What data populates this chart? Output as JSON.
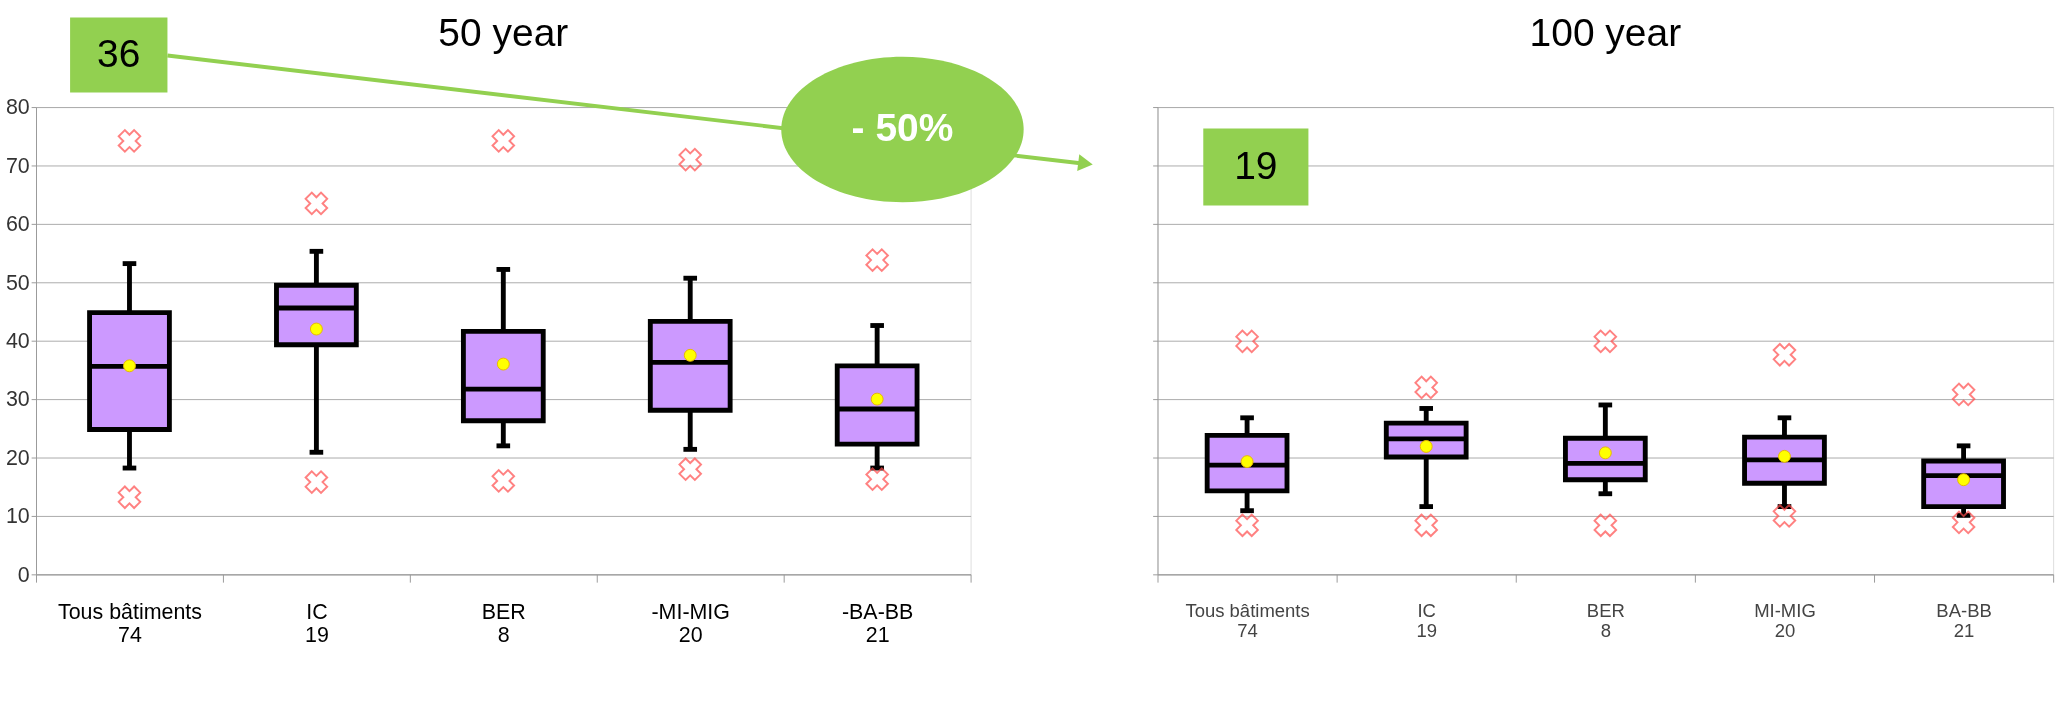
{
  "chart_data": [
    {
      "type": "box",
      "title": "50 year",
      "categories": [
        "Tous bâtiments\n74",
        "IC\n19",
        "BER\n8",
        "-MI-MIG\n20",
        "-BA-BB\n21"
      ],
      "series": [
        {
          "color": "#cc99ff",
          "boxes": [
            {
              "low": 18.2,
              "q1": 24.8,
              "median": 35.6,
              "q3": 44.8,
              "high": 53.2,
              "mean": 35.7,
              "outliers": [
                74.2,
                13.2
              ]
            },
            {
              "low": 20.9,
              "q1": 39.3,
              "median": 45.6,
              "q3": 49.5,
              "high": 55.3,
              "mean": 42.0,
              "outliers": [
                63.5,
                15.8
              ]
            },
            {
              "low": 22.0,
              "q1": 26.3,
              "median": 31.7,
              "q3": 41.6,
              "high": 52.2,
              "mean": 36.0,
              "outliers": [
                74.2,
                16.0
              ]
            },
            {
              "low": 21.4,
              "q1": 28.1,
              "median": 36.3,
              "q3": 43.3,
              "high": 50.7,
              "mean": 37.5,
              "outliers": [
                71.0,
                18.0
              ]
            },
            {
              "low": 18.2,
              "q1": 22.3,
              "median": 28.3,
              "q3": 35.7,
              "high": 42.6,
              "mean": 30.0,
              "outliers": [
                53.8,
                16.3
              ]
            }
          ]
        }
      ],
      "ylim": [
        0,
        80
      ],
      "yticks": [
        0,
        10,
        20,
        30,
        40,
        50,
        60,
        70,
        80
      ],
      "grid": "y",
      "legend": false,
      "annotations": [
        "36",
        "- 50%"
      ]
    },
    {
      "type": "box",
      "title": "100 year",
      "categories": [
        "Tous bâtiments\n74",
        "IC\n19",
        "BER\n8",
        "MI-MIG\n20",
        "BA-BB\n21"
      ],
      "series": [
        {
          "color": "#cc99ff",
          "boxes": [
            {
              "low": 10.9,
              "q1": 14.3,
              "median": 18.7,
              "q3": 23.8,
              "high": 26.8,
              "mean": 19.3,
              "outliers": [
                39.9,
                8.4
              ]
            },
            {
              "low": 11.6,
              "q1": 20.1,
              "median": 23.2,
              "q3": 25.9,
              "high": 28.4,
              "mean": 21.9,
              "outliers": [
                32.0,
                8.4
              ]
            },
            {
              "low": 13.8,
              "q1": 16.2,
              "median": 19.0,
              "q3": 23.3,
              "high": 29.0,
              "mean": 20.8,
              "outliers": [
                39.9,
                8.4
              ]
            },
            {
              "low": 11.6,
              "q1": 15.6,
              "median": 19.6,
              "q3": 23.5,
              "high": 26.8,
              "mean": 20.2,
              "outliers": [
                37.6,
                10.0
              ]
            },
            {
              "low": 10.1,
              "q1": 11.6,
              "median": 16.9,
              "q3": 19.4,
              "high": 22.0,
              "mean": 16.2,
              "outliers": [
                30.8,
                8.9
              ]
            }
          ]
        }
      ],
      "ylim": [
        0,
        80
      ],
      "yticks": [
        {
          "value": 0,
          "label": null
        },
        {
          "value": 10,
          "label": null
        },
        {
          "value": 20,
          "label": null
        },
        {
          "value": 30,
          "label": null
        },
        {
          "value": 40,
          "label": null
        },
        {
          "value": 50,
          "label": null
        },
        {
          "value": 60,
          "label": null
        },
        {
          "value": 70,
          "label": null
        },
        {
          "value": 80,
          "label": null
        }
      ],
      "tick_labels": "x",
      "grid": "y",
      "legend": false,
      "annotations": [
        "19"
      ]
    }
  ]
}
